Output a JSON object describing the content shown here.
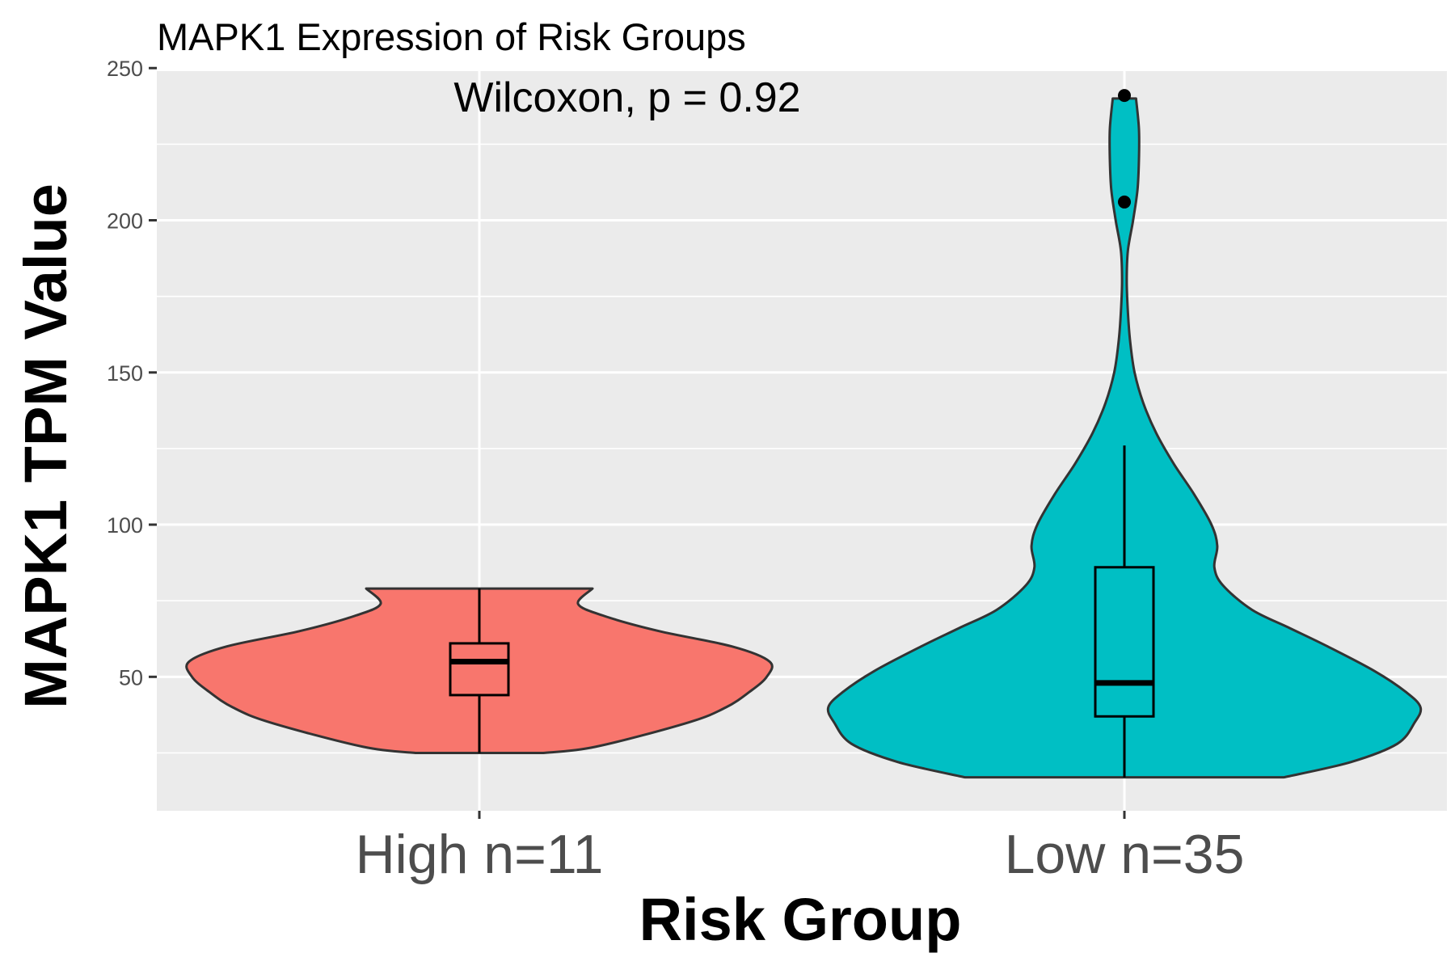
{
  "chart_data": {
    "type": "violin",
    "title": "MAPK1 Expression of Risk Groups",
    "annotation": "Wilcoxon, p = 0.92",
    "xlabel": "Risk Group",
    "ylabel": "MAPK1 TPM Value",
    "ylim": [
      6,
      249
    ],
    "yticks": [
      50,
      100,
      150,
      200,
      250
    ],
    "grid": true,
    "legend": "none",
    "groups": [
      {
        "label": "High n=11",
        "color": "#F8766D",
        "min": 25,
        "q1": 44,
        "median": 55,
        "q3": 61,
        "max": 79,
        "outliers": [],
        "density": [
          [
            25,
            0.22
          ],
          [
            27,
            0.4
          ],
          [
            35,
            0.72
          ],
          [
            40,
            0.85
          ],
          [
            45,
            0.93
          ],
          [
            50,
            0.99
          ],
          [
            55,
            1.0
          ],
          [
            60,
            0.87
          ],
          [
            65,
            0.62
          ],
          [
            70,
            0.43
          ],
          [
            74,
            0.34
          ],
          [
            79,
            0.39
          ]
        ]
      },
      {
        "label": "Low n=35",
        "color": "#00BFC4",
        "min": 17,
        "q1": 37,
        "median": 48,
        "q3": 86,
        "max": 126,
        "outliers": [
          206,
          241
        ],
        "density": [
          [
            17,
            0.55
          ],
          [
            22,
            0.78
          ],
          [
            28,
            0.94
          ],
          [
            35,
            1.0
          ],
          [
            40,
            1.02
          ],
          [
            45,
            0.97
          ],
          [
            52,
            0.86
          ],
          [
            60,
            0.7
          ],
          [
            66,
            0.57
          ],
          [
            72,
            0.44
          ],
          [
            80,
            0.34
          ],
          [
            86,
            0.31
          ],
          [
            93,
            0.32
          ],
          [
            100,
            0.3
          ],
          [
            110,
            0.24
          ],
          [
            120,
            0.17
          ],
          [
            130,
            0.11
          ],
          [
            140,
            0.065
          ],
          [
            150,
            0.035
          ],
          [
            160,
            0.02
          ],
          [
            170,
            0.012
          ],
          [
            180,
            0.008
          ],
          [
            190,
            0.012
          ],
          [
            200,
            0.03
          ],
          [
            210,
            0.045
          ],
          [
            220,
            0.05
          ],
          [
            230,
            0.05
          ],
          [
            240,
            0.04
          ]
        ]
      }
    ]
  }
}
